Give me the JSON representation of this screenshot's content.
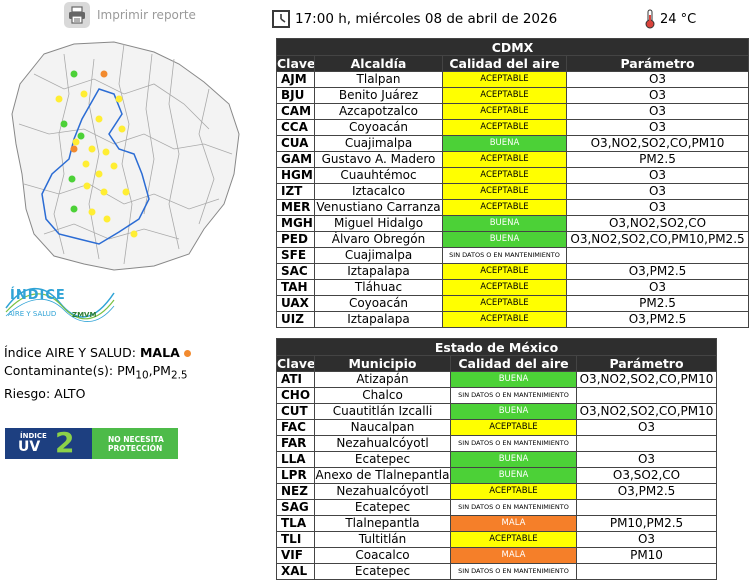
{
  "print": {
    "label": "Imprimir reporte",
    "icon": "printer-icon"
  },
  "header": {
    "datetime": "17:00 h, miércoles 08 de abril de 2026",
    "temperature": "24 °C",
    "clock_icon": "clock-icon",
    "thermometer_icon": "thermometer-icon"
  },
  "logo": {
    "line1": "ÍNDICE",
    "line2": "AIRE Y SALUD",
    "line3": "ZMVM"
  },
  "status": {
    "index_label": "Índice AIRE Y SALUD: ",
    "index_value": "MALA",
    "index_color": "#f28a2e",
    "pollutants_label": "Contaminante(s): ",
    "pm10_base": "PM",
    "pm10_sub": "10",
    "pm25_base": "PM",
    "pm25_sub": "2.5",
    "risk_label": "Riesgo: ",
    "risk_value": "ALTO"
  },
  "uv": {
    "small": "ÍNDICE",
    "big": "UV",
    "value": "2",
    "message_line1": "NO NECESITA",
    "message_line2": "PROTECCIÓN"
  },
  "colors": {
    "ACEPTABLE": "#ffff00",
    "BUENA": "#4cd137",
    "MALA": "#f57f29",
    "header": "#2e2e2e"
  },
  "cdmx": {
    "title": "CDMX",
    "headers": {
      "clave": "Clave",
      "name": "Alcaldía",
      "quality": "Calidad del aire",
      "param": "Parámetro"
    },
    "rows": [
      {
        "clave": "AJM",
        "name": "Tlalpan",
        "quality": "ACEPTABLE",
        "param": "O3"
      },
      {
        "clave": "BJU",
        "name": "Benito Juárez",
        "quality": "ACEPTABLE",
        "param": "O3"
      },
      {
        "clave": "CAM",
        "name": "Azcapotzalco",
        "quality": "ACEPTABLE",
        "param": "O3"
      },
      {
        "clave": "CCA",
        "name": "Coyoacán",
        "quality": "ACEPTABLE",
        "param": "O3"
      },
      {
        "clave": "CUA",
        "name": "Cuajimalpa",
        "quality": "BUENA",
        "param": "O3,NO2,SO2,CO,PM10"
      },
      {
        "clave": "GAM",
        "name": "Gustavo A. Madero",
        "quality": "ACEPTABLE",
        "param": "PM2.5"
      },
      {
        "clave": "HGM",
        "name": "Cuauhtémoc",
        "quality": "ACEPTABLE",
        "param": "O3"
      },
      {
        "clave": "IZT",
        "name": "Iztacalco",
        "quality": "ACEPTABLE",
        "param": "O3"
      },
      {
        "clave": "MER",
        "name": "Venustiano Carranza",
        "quality": "ACEPTABLE",
        "param": "O3"
      },
      {
        "clave": "MGH",
        "name": "Miguel Hidalgo",
        "quality": "BUENA",
        "param": "O3,NO2,SO2,CO"
      },
      {
        "clave": "PED",
        "name": "Álvaro Obregón",
        "quality": "BUENA",
        "param": "O3,NO2,SO2,CO,PM10,PM2.5"
      },
      {
        "clave": "SFE",
        "name": "Cuajimalpa",
        "quality": "SIN DATOS O EN MANTENIMIENTO",
        "param": ""
      },
      {
        "clave": "SAC",
        "name": "Iztapalapa",
        "quality": "ACEPTABLE",
        "param": "O3,PM2.5"
      },
      {
        "clave": "TAH",
        "name": "Tláhuac",
        "quality": "ACEPTABLE",
        "param": "O3"
      },
      {
        "clave": "UAX",
        "name": "Coyoacán",
        "quality": "ACEPTABLE",
        "param": "PM2.5"
      },
      {
        "clave": "UIZ",
        "name": "Iztapalapa",
        "quality": "ACEPTABLE",
        "param": "O3,PM2.5"
      }
    ]
  },
  "edomex": {
    "title": "Estado de México",
    "headers": {
      "clave": "Clave",
      "name": "Municipio",
      "quality": "Calidad del aire",
      "param": "Parámetro"
    },
    "rows": [
      {
        "clave": "ATI",
        "name": "Atizapán",
        "quality": "BUENA",
        "param": "O3,NO2,SO2,CO,PM10"
      },
      {
        "clave": "CHO",
        "name": "Chalco",
        "quality": "SIN DATOS O EN MANTENIMIENTO",
        "param": ""
      },
      {
        "clave": "CUT",
        "name": "Cuautitlán Izcalli",
        "quality": "BUENA",
        "param": "O3,NO2,SO2,CO,PM10"
      },
      {
        "clave": "FAC",
        "name": "Naucalpan",
        "quality": "ACEPTABLE",
        "param": "O3"
      },
      {
        "clave": "FAR",
        "name": "Nezahualcóyotl",
        "quality": "SIN DATOS O EN MANTENIMIENTO",
        "param": ""
      },
      {
        "clave": "LLA",
        "name": "Ecatepec",
        "quality": "BUENA",
        "param": "O3"
      },
      {
        "clave": "LPR",
        "name": "Anexo de Tlalnepantla",
        "quality": "BUENA",
        "param": "O3,SO2,CO"
      },
      {
        "clave": "NEZ",
        "name": "Nezahualcóyotl",
        "quality": "ACEPTABLE",
        "param": "O3,PM2.5"
      },
      {
        "clave": "SAG",
        "name": "Ecatepec",
        "quality": "SIN DATOS O EN MANTENIMIENTO",
        "param": ""
      },
      {
        "clave": "TLA",
        "name": "Tlalnepantla",
        "quality": "MALA",
        "param": "PM10,PM2.5"
      },
      {
        "clave": "TLI",
        "name": "Tultitlán",
        "quality": "ACEPTABLE",
        "param": "O3"
      },
      {
        "clave": "VIF",
        "name": "Coacalco",
        "quality": "MALA",
        "param": "PM10"
      },
      {
        "clave": "XAL",
        "name": "Ecatepec",
        "quality": "SIN DATOS O EN MANTENIMIENTO",
        "param": ""
      }
    ]
  }
}
